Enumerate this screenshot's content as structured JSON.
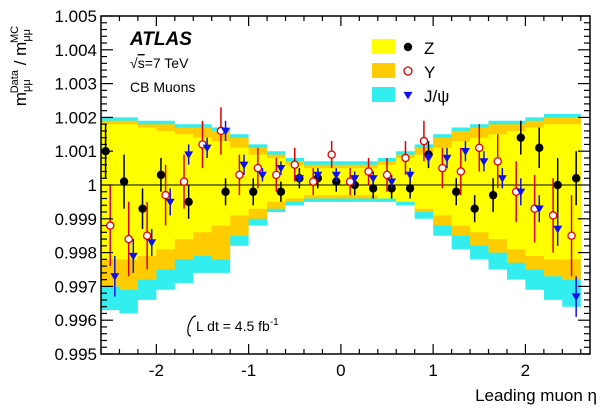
{
  "chart_data": {
    "type": "scatter",
    "title": "",
    "xlabel": "Leading muon η",
    "ylabel_main": "m",
    "ylabel_num_sub": "μμ",
    "ylabel_num_sup": "Data",
    "ylabel_den_sub": "μμ",
    "ylabel_den_sup": "MC",
    "xlim": [
      -2.6,
      2.7
    ],
    "ylim": [
      0.995,
      1.005
    ],
    "x_ticks": [
      -2,
      -1,
      0,
      1,
      2
    ],
    "x_tick_labels": [
      "-2",
      "-1",
      "0",
      "1",
      "2"
    ],
    "y_ticks": [
      0.995,
      0.996,
      0.997,
      0.998,
      0.999,
      1.0,
      1.001,
      1.002,
      1.003,
      1.004,
      1.005
    ],
    "y_tick_labels": [
      "0.995",
      "0.996",
      "0.997",
      "0.998",
      "0.999",
      "1",
      "1.001",
      "1.002",
      "1.003",
      "1.004",
      "1.005"
    ],
    "reference_line": 1.0,
    "experiment": "ATLAS",
    "energy_sqrt": "s",
    "energy_rest": "=7 TeV",
    "selection": "CB  Muons",
    "lumi_text": "L dt = 4.5 fb",
    "lumi_sup": "-1",
    "legend_position": "top-right",
    "bands": [
      {
        "name": "Z",
        "color": "#ffff00",
        "x": [
          -2.6,
          -2.4,
          -2.2,
          -2.0,
          -1.8,
          -1.6,
          -1.4,
          -1.2,
          -1.0,
          -0.8,
          -0.6,
          -0.4,
          -0.2,
          0.0,
          0.2,
          0.4,
          0.6,
          0.8,
          1.0,
          1.2,
          1.4,
          1.6,
          1.8,
          2.0,
          2.2,
          2.4,
          2.6
        ],
        "low": [
          0.9978,
          0.9978,
          0.9979,
          0.9981,
          0.9984,
          0.9986,
          0.9988,
          0.9991,
          0.9993,
          0.9995,
          0.9996,
          0.9997,
          0.9997,
          0.9997,
          0.9997,
          0.9996,
          0.9995,
          0.9993,
          0.9991,
          0.9988,
          0.9986,
          0.9984,
          0.9981,
          0.9979,
          0.9978,
          0.9978,
          0.9978
        ],
        "high": [
          1.0018,
          1.0018,
          1.0017,
          1.0016,
          1.0015,
          1.0014,
          1.0013,
          1.0011,
          1.0009,
          1.0008,
          1.0006,
          1.0005,
          1.0005,
          1.0005,
          1.0005,
          1.0006,
          1.0008,
          1.0009,
          1.0011,
          1.0013,
          1.0014,
          1.0015,
          1.0016,
          1.0017,
          1.0018,
          1.0018,
          1.0018
        ]
      },
      {
        "name": "Υ",
        "color": "#ffcc00",
        "x": [
          -2.6,
          -2.4,
          -2.2,
          -2.0,
          -1.8,
          -1.6,
          -1.4,
          -1.2,
          -1.0,
          -0.8,
          -0.6,
          -0.4,
          -0.2,
          0.0,
          0.2,
          0.4,
          0.6,
          0.8,
          1.0,
          1.2,
          1.4,
          1.6,
          1.8,
          2.0,
          2.2,
          2.4,
          2.6
        ],
        "low": [
          0.997,
          0.9969,
          0.9972,
          0.9975,
          0.9978,
          0.9979,
          0.9978,
          0.9985,
          0.999,
          0.9993,
          0.9995,
          0.9996,
          0.9996,
          0.9996,
          0.9996,
          0.9996,
          0.9995,
          0.9992,
          0.9988,
          0.9985,
          0.9982,
          0.998,
          0.9977,
          0.9975,
          0.9973,
          0.9972,
          0.9973
        ],
        "high": [
          1.0019,
          1.0019,
          1.0018,
          1.0018,
          1.0017,
          1.0017,
          1.0016,
          1.0014,
          1.0011,
          1.0009,
          1.0007,
          1.0006,
          1.0006,
          1.0006,
          1.0006,
          1.0007,
          1.0009,
          1.0011,
          1.0014,
          1.0016,
          1.0017,
          1.0018,
          1.0018,
          1.0019,
          1.002,
          1.002,
          1.002
        ]
      },
      {
        "name": "J/ψ",
        "color": "#33eeee",
        "x": [
          -2.6,
          -2.4,
          -2.2,
          -2.0,
          -1.8,
          -1.6,
          -1.4,
          -1.2,
          -1.0,
          -0.8,
          -0.6,
          -0.4,
          -0.2,
          0.0,
          0.2,
          0.4,
          0.6,
          0.8,
          1.0,
          1.2,
          1.4,
          1.6,
          1.8,
          2.0,
          2.2,
          2.4,
          2.6
        ],
        "low": [
          0.9963,
          0.9962,
          0.9966,
          0.9969,
          0.9971,
          0.9974,
          0.9974,
          0.9982,
          0.9988,
          0.9992,
          0.9994,
          0.9995,
          0.9995,
          0.9995,
          0.9995,
          0.9995,
          0.9994,
          0.999,
          0.9985,
          0.9981,
          0.9978,
          0.9975,
          0.9972,
          0.9969,
          0.9966,
          0.9964,
          0.9964
        ],
        "high": [
          1.002,
          1.002,
          1.0019,
          1.0019,
          1.0018,
          1.0018,
          1.0017,
          1.0015,
          1.0012,
          1.001,
          1.0008,
          1.0007,
          1.0007,
          1.0007,
          1.0007,
          1.0008,
          1.001,
          1.0012,
          1.0015,
          1.0017,
          1.0018,
          1.0019,
          1.0019,
          1.002,
          1.0021,
          1.0021,
          1.0021
        ]
      }
    ],
    "series": [
      {
        "name": "Z",
        "marker": "filled-circle",
        "color": "#000000",
        "x": [
          -2.55,
          -2.35,
          -2.15,
          -1.95,
          -1.65,
          -1.25,
          -0.95,
          -0.65,
          -0.45,
          -0.25,
          -0.05,
          0.15,
          0.35,
          0.55,
          0.75,
          0.95,
          1.25,
          1.45,
          1.65,
          1.95,
          2.15,
          2.35,
          2.55
        ],
        "y": [
          1.001,
          1.0001,
          0.9993,
          1.0003,
          0.9995,
          0.9998,
          0.9998,
          0.9998,
          1.0002,
          1.0002,
          1.0001,
          1.0,
          0.9999,
          0.9999,
          0.9999,
          1.0009,
          0.9998,
          0.9993,
          0.9997,
          1.0014,
          1.0011,
          1.0,
          1.0002
        ],
        "err": [
          0.0008,
          0.0008,
          0.0006,
          0.0005,
          0.0005,
          0.0004,
          0.0004,
          0.0003,
          0.0003,
          0.0003,
          0.0003,
          0.0003,
          0.0003,
          0.0003,
          0.0003,
          0.0004,
          0.0004,
          0.0004,
          0.0005,
          0.0005,
          0.0006,
          0.0008,
          0.0008
        ]
      },
      {
        "name": "Υ",
        "marker": "open-circle",
        "color": "#dd0000",
        "x": [
          -2.5,
          -2.3,
          -2.1,
          -1.9,
          -1.7,
          -1.5,
          -1.3,
          -1.1,
          -0.9,
          -0.7,
          -0.5,
          -0.3,
          -0.1,
          0.1,
          0.3,
          0.5,
          0.7,
          0.9,
          1.1,
          1.3,
          1.5,
          1.7,
          1.9,
          2.1,
          2.3,
          2.5
        ],
        "y": [
          0.9988,
          0.9984,
          0.9985,
          0.9997,
          1.0001,
          1.0012,
          1.0016,
          1.0003,
          1.0005,
          1.0003,
          1.0006,
          1.0001,
          1.0009,
          1.0001,
          1.0004,
          1.0003,
          1.0008,
          1.0013,
          1.0005,
          1.0004,
          1.0011,
          1.0007,
          0.9998,
          0.9993,
          0.9991,
          0.9985
        ],
        "err": [
          0.0012,
          0.0011,
          0.001,
          0.0009,
          0.0008,
          0.0007,
          0.0007,
          0.0006,
          0.0006,
          0.0005,
          0.0005,
          0.0004,
          0.0004,
          0.0004,
          0.0004,
          0.0005,
          0.0005,
          0.0006,
          0.0006,
          0.0007,
          0.0007,
          0.0008,
          0.0009,
          0.001,
          0.0011,
          0.0012
        ]
      },
      {
        "name": "J/ψ",
        "marker": "filled-triangle-down",
        "color": "#1010ee",
        "x": [
          -2.45,
          -2.25,
          -2.05,
          -1.85,
          -1.65,
          -1.45,
          -1.25,
          -1.05,
          -0.85,
          -0.65,
          -0.45,
          -0.25,
          -0.05,
          0.15,
          0.35,
          0.55,
          0.75,
          0.95,
          1.15,
          1.35,
          1.55,
          1.75,
          1.95,
          2.15,
          2.35,
          2.55
        ],
        "y": [
          0.9973,
          0.9979,
          0.9983,
          0.9995,
          1.0009,
          1.0011,
          1.0016,
          1.0006,
          1.0003,
          1.0005,
          1.0002,
          1.0003,
          1.0003,
          1.0002,
          1.0002,
          1.0001,
          1.0003,
          1.0008,
          1.0008,
          1.001,
          1.0007,
          1.0002,
          0.9998,
          0.9993,
          0.9987,
          0.9967
        ],
        "err": [
          0.0006,
          0.0005,
          0.0004,
          0.0004,
          0.0003,
          0.0003,
          0.0003,
          0.0003,
          0.0002,
          0.0002,
          0.0002,
          0.0002,
          0.0002,
          0.0002,
          0.0002,
          0.0002,
          0.0002,
          0.0002,
          0.0003,
          0.0003,
          0.0003,
          0.0003,
          0.0004,
          0.0004,
          0.0005,
          0.0006
        ]
      }
    ]
  }
}
